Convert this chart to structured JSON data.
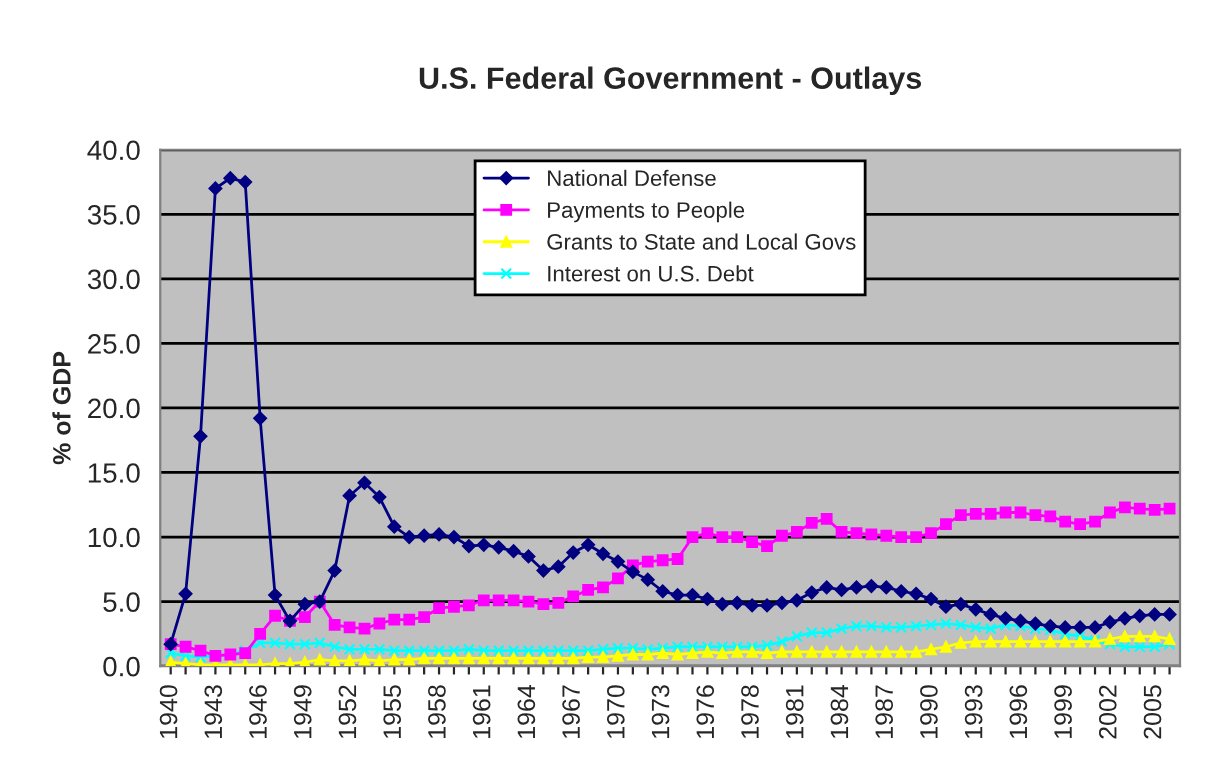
{
  "chart_data": {
    "type": "line",
    "title": "U.S. Federal Government - Outlays",
    "ylabel": "% of GDP",
    "categories": [
      "1940",
      null,
      null,
      "1943",
      null,
      null,
      "1946",
      null,
      null,
      "1949",
      null,
      null,
      "1952",
      null,
      null,
      "1955",
      null,
      null,
      "1958",
      null,
      null,
      "1961",
      null,
      null,
      "1964",
      null,
      null,
      "1967",
      null,
      null,
      "1970",
      null,
      null,
      "1973",
      null,
      null,
      "1976",
      null,
      null,
      "1978",
      null,
      null,
      "1981",
      null,
      null,
      "1984",
      null,
      null,
      "1987",
      null,
      null,
      "1990",
      null,
      null,
      "1993",
      null,
      null,
      "1996",
      null,
      null,
      "1999",
      null,
      null,
      "2002",
      null,
      null,
      "2005",
      null
    ],
    "series": [
      {
        "name": "National Defense",
        "color": "#000080",
        "marker": "diamond",
        "values": [
          1.7,
          5.6,
          17.8,
          37.0,
          37.8,
          37.5,
          19.2,
          5.5,
          3.5,
          4.8,
          5.0,
          7.4,
          13.2,
          14.2,
          13.1,
          10.8,
          10.0,
          10.1,
          10.2,
          10.0,
          9.3,
          9.4,
          9.2,
          8.9,
          8.5,
          7.4,
          7.7,
          8.8,
          9.4,
          8.7,
          8.1,
          7.3,
          6.7,
          5.8,
          5.5,
          5.5,
          5.2,
          4.8,
          4.9,
          4.7,
          4.7,
          4.9,
          5.1,
          5.7,
          6.1,
          5.9,
          6.1,
          6.2,
          6.1,
          5.8,
          5.6,
          5.2,
          4.6,
          4.8,
          4.4,
          4.0,
          3.7,
          3.5,
          3.3,
          3.1,
          3.0,
          3.0,
          3.0,
          3.4,
          3.7,
          3.9,
          4.0,
          4.0
        ]
      },
      {
        "name": "Payments to People",
        "color": "#ff00ff",
        "marker": "square",
        "values": [
          1.7,
          1.5,
          1.2,
          0.8,
          0.9,
          1.0,
          2.5,
          3.9,
          3.5,
          3.8,
          5.0,
          3.2,
          3.0,
          2.9,
          3.3,
          3.6,
          3.6,
          3.8,
          4.5,
          4.6,
          4.7,
          5.1,
          5.1,
          5.1,
          5.0,
          4.8,
          4.9,
          5.4,
          5.9,
          6.1,
          6.8,
          7.8,
          8.1,
          8.2,
          8.3,
          10.0,
          10.3,
          10.0,
          10.0,
          9.6,
          9.3,
          10.1,
          10.4,
          11.1,
          11.4,
          10.4,
          10.3,
          10.2,
          10.1,
          10.0,
          10.0,
          10.3,
          11.0,
          11.7,
          11.8,
          11.8,
          11.9,
          11.9,
          11.7,
          11.6,
          11.2,
          11.0,
          11.2,
          11.9,
          12.3,
          12.2,
          12.1,
          12.2
        ]
      },
      {
        "name": "Grants to State and Local Govs",
        "color": "#ffff00",
        "marker": "triangle",
        "values": [
          0.3,
          0.2,
          0.1,
          0.1,
          0.1,
          0.1,
          0.1,
          0.2,
          0.2,
          0.3,
          0.5,
          0.4,
          0.4,
          0.5,
          0.4,
          0.5,
          0.5,
          0.6,
          0.6,
          0.6,
          0.6,
          0.6,
          0.6,
          0.6,
          0.6,
          0.6,
          0.6,
          0.6,
          0.7,
          0.7,
          0.8,
          0.9,
          0.9,
          1.0,
          0.9,
          1.0,
          1.1,
          1.0,
          1.1,
          1.1,
          1.0,
          1.1,
          1.1,
          1.1,
          1.1,
          1.1,
          1.1,
          1.1,
          1.1,
          1.1,
          1.1,
          1.3,
          1.5,
          1.8,
          1.9,
          1.9,
          1.9,
          1.9,
          1.9,
          1.9,
          1.9,
          1.9,
          1.9,
          2.1,
          2.3,
          2.3,
          2.3,
          2.1
        ]
      },
      {
        "name": "Interest on U.S. Debt",
        "color": "#00ffff",
        "marker": "cross",
        "values": [
          1.0,
          0.8,
          0.7,
          0.8,
          0.9,
          1.2,
          1.8,
          1.8,
          1.7,
          1.7,
          1.8,
          1.5,
          1.3,
          1.3,
          1.3,
          1.2,
          1.2,
          1.2,
          1.2,
          1.2,
          1.3,
          1.2,
          1.2,
          1.2,
          1.2,
          1.2,
          1.2,
          1.2,
          1.2,
          1.3,
          1.4,
          1.4,
          1.3,
          1.4,
          1.5,
          1.5,
          1.5,
          1.5,
          1.5,
          1.5,
          1.6,
          1.9,
          2.3,
          2.6,
          2.6,
          2.9,
          3.1,
          3.1,
          3.0,
          3.0,
          3.1,
          3.2,
          3.3,
          3.2,
          3.0,
          2.9,
          3.2,
          3.1,
          2.9,
          2.8,
          2.5,
          2.3,
          2.0,
          1.7,
          1.5,
          1.5,
          1.5,
          1.7
        ]
      }
    ],
    "ylim": [
      0,
      40
    ],
    "yticks": [
      {
        "value": 0,
        "label": "0.0"
      },
      {
        "value": 5,
        "label": "5.0"
      },
      {
        "value": 10,
        "label": "10.0"
      },
      {
        "value": 15,
        "label": "15.0"
      },
      {
        "value": 20,
        "label": "20.0"
      },
      {
        "value": 25,
        "label": "25.0"
      },
      {
        "value": 30,
        "label": "30.0"
      },
      {
        "value": 35,
        "label": "35.0"
      },
      {
        "value": 40,
        "label": "40.0"
      }
    ],
    "grid": "y",
    "legend": "top center"
  }
}
